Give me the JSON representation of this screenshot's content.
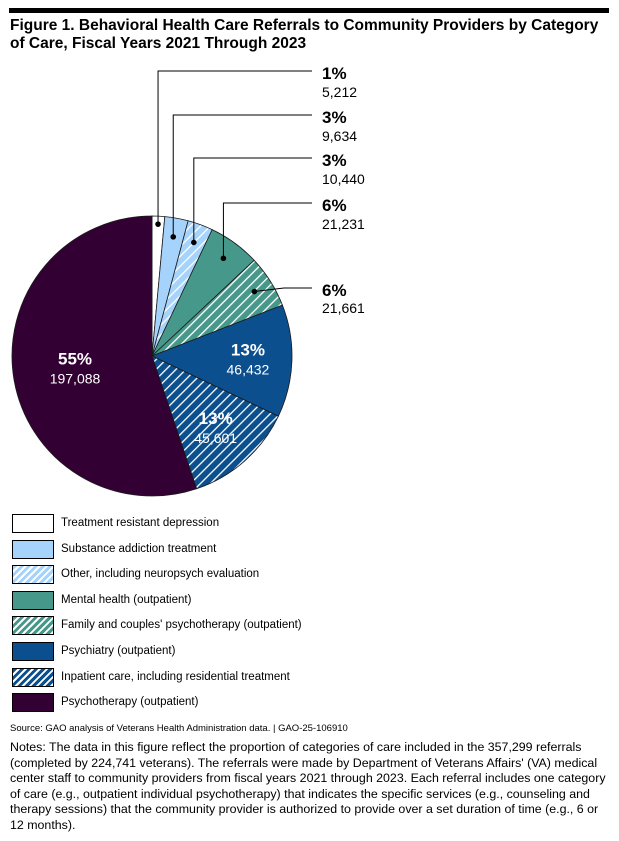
{
  "title": "Figure 1. Behavioral Health Care Referrals to Community Providers by Category of Care, Fiscal Years 2021 Through 2023",
  "chart_data": {
    "type": "pie",
    "title": "Figure 1. Behavioral Health Care Referrals to Community Providers by Category of Care, Fiscal Years 2021 Through 2023",
    "slices": [
      {
        "label": "Treatment resistant depression",
        "value": 5212,
        "pct": "1%",
        "value_text": "5,212",
        "color": "#ffffff",
        "hatched": false
      },
      {
        "label": "Substance addiction treatment",
        "value": 9634,
        "pct": "3%",
        "value_text": "9,634",
        "color": "#a6d3fb",
        "hatched": false
      },
      {
        "label": "Other, including neuropsych evaluation",
        "value": 10440,
        "pct": "3%",
        "value_text": "10,440",
        "color": "#a6d3fb",
        "hatched": true
      },
      {
        "label": "Mental health (outpatient)",
        "value": 21231,
        "pct": "6%",
        "value_text": "21,231",
        "color": "#46988a",
        "hatched": false
      },
      {
        "label": "Family and couples' psychotherapy (outpatient)",
        "value": 21661,
        "pct": "6%",
        "value_text": "21,661",
        "color": "#46988a",
        "hatched": true
      },
      {
        "label": "Psychiatry (outpatient)",
        "value": 46432,
        "pct": "13%",
        "value_text": "46,432",
        "color": "#0b4f8f",
        "hatched": false
      },
      {
        "label": "Inpatient care, including residential treatment",
        "value": 45601,
        "pct": "13%",
        "value_text": "45,601",
        "color": "#0b4f8f",
        "hatched": true
      },
      {
        "label": "Psychotherapy (outpatient)",
        "value": 197088,
        "pct": "55%",
        "value_text": "197,088",
        "color": "#330034",
        "hatched": false
      }
    ],
    "legend_position": "bottom"
  },
  "source": "Source: GAO analysis of Veterans Health Administration data.  |  GAO-25-106910",
  "notes": "Notes: The data in this figure reflect the proportion of categories of care included in the 357,299 referrals (completed by 224,741 veterans). The referrals were made by Department of Veterans Affairs' (VA) medical center staff to community providers from fiscal years 2021 through 2023. Each referral includes one category of care (e.g., outpatient individual psychotherapy) that indicates the specific services (e.g., counseling and therapy sessions) that the community provider is authorized to provide over a set duration of time (e.g., 6 or 12 months)."
}
